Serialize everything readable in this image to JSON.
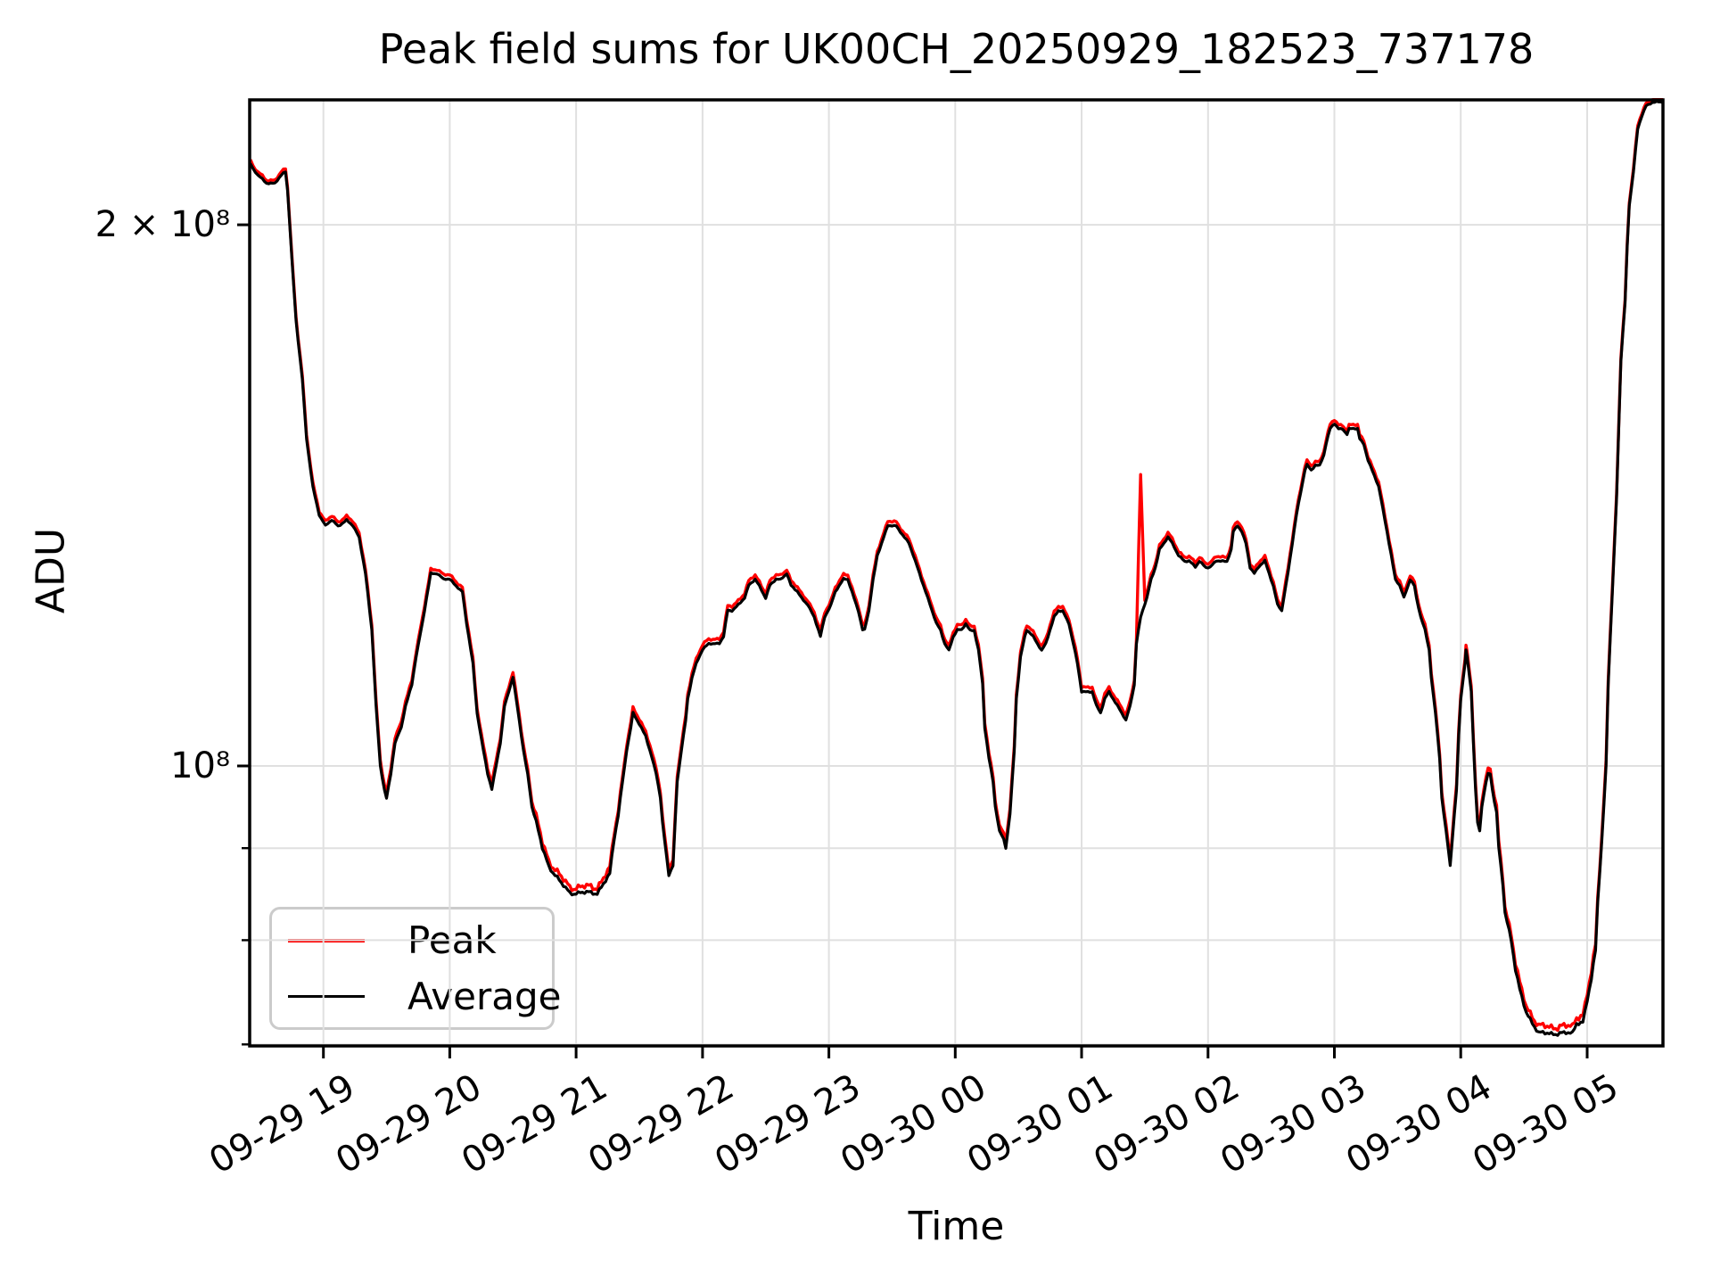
{
  "chart_data": {
    "type": "line",
    "title": "Peak field sums for UK00CH_20250929_182523_737178",
    "xlabel": "Time",
    "ylabel": "ADU",
    "yscale": "log",
    "grid": true,
    "legend_position": "lower left",
    "ylim": [
      70000000,
      235000000
    ],
    "x_unit": "minutes since 2025-09-29 18:25",
    "x_range_minutes": [
      0,
      671
    ],
    "x_ticks": [
      {
        "label": "09-29 19",
        "t": 35
      },
      {
        "label": "09-29 20",
        "t": 95
      },
      {
        "label": "09-29 21",
        "t": 155
      },
      {
        "label": "09-29 22",
        "t": 215
      },
      {
        "label": "09-29 23",
        "t": 275
      },
      {
        "label": "09-30 00",
        "t": 335
      },
      {
        "label": "09-30 01",
        "t": 395
      },
      {
        "label": "09-30 02",
        "t": 455
      },
      {
        "label": "09-30 03",
        "t": 515
      },
      {
        "label": "09-30 04",
        "t": 575
      },
      {
        "label": "09-30 05",
        "t": 635
      }
    ],
    "y_ticks": [
      {
        "label": "2 × 10⁸",
        "value_millions": 200
      },
      {
        "label": "10⁸",
        "value_millions": 100
      }
    ],
    "y_minor_ticks_millions": [
      90,
      80,
      70
    ],
    "x_minutes": [
      0.4,
      4,
      8,
      12,
      15,
      17,
      18,
      20,
      22,
      25,
      27,
      30,
      33,
      36,
      39,
      42,
      46,
      49,
      52,
      55,
      58,
      60,
      62,
      64,
      65,
      67,
      69,
      72,
      74,
      77,
      79,
      82,
      84,
      86,
      89,
      92,
      95,
      98,
      101,
      103,
      106,
      108,
      111,
      113,
      115,
      117,
      119,
      121,
      124,
      125,
      127,
      130,
      132,
      134,
      137,
      139,
      142,
      145,
      148,
      152,
      155,
      158,
      162,
      165,
      168,
      171,
      173,
      175,
      177,
      179,
      181,
      182,
      184,
      186,
      188,
      190,
      193,
      195,
      196,
      198,
      199,
      201,
      202,
      203,
      205,
      207,
      208,
      210,
      212,
      215,
      218,
      220,
      223,
      225,
      227,
      229,
      232,
      235,
      237,
      240,
      242,
      245,
      247,
      250,
      252,
      255,
      257,
      260,
      262,
      265,
      268,
      270,
      271,
      273,
      276,
      278,
      280,
      282,
      284,
      287,
      289,
      291,
      292,
      294,
      296,
      298,
      301,
      303,
      305,
      307,
      309,
      311,
      313,
      316,
      318,
      321,
      323,
      326,
      328,
      330,
      332,
      334,
      336,
      338,
      340,
      342,
      344,
      346,
      348,
      349,
      351,
      353,
      354,
      356,
      358,
      359,
      361,
      363,
      364,
      366,
      368,
      369,
      372,
      374,
      376,
      378,
      380,
      382,
      384,
      386,
      389,
      391,
      393,
      395,
      397,
      400,
      402,
      404,
      406,
      408,
      410,
      412,
      414,
      416,
      418,
      420,
      421,
      423,
      425,
      426,
      428,
      430,
      432,
      434,
      436,
      438,
      441,
      444,
      446,
      449,
      451,
      454,
      456,
      459,
      461,
      464,
      466,
      467,
      469,
      471,
      473,
      475,
      477,
      479,
      482,
      484,
      486,
      488,
      490,
      491,
      493,
      495,
      497,
      499,
      501,
      502,
      504,
      506,
      508,
      510,
      511,
      513,
      515,
      517,
      519,
      521,
      522,
      524,
      526,
      527,
      529,
      531,
      533,
      534,
      536,
      538,
      540,
      542,
      544,
      546,
      548,
      549,
      551,
      553,
      554,
      556,
      558,
      560,
      561,
      563,
      565,
      566,
      568,
      569,
      570,
      571,
      573,
      574,
      575,
      577,
      577.5,
      578,
      580,
      581,
      582,
      583,
      584,
      585,
      587,
      588,
      589,
      590,
      592,
      593,
      595,
      596,
      599,
      601,
      603,
      606,
      609,
      612,
      615,
      618,
      621,
      625,
      628,
      630,
      633,
      635,
      637,
      639,
      640,
      642,
      644,
      645,
      647,
      649,
      650,
      651,
      653,
      654,
      655,
      657,
      658,
      659,
      661,
      663,
      666,
      669,
      671
    ],
    "series": [
      {
        "name": "Peak",
        "color": "#ff0000",
        "values_millions": [
          216.5,
          213.5,
          211.5,
          211.5,
          213.5,
          214.5,
          209.5,
          192.5,
          177.5,
          164.5,
          152.5,
          143.5,
          138.5,
          136.5,
          137.5,
          136.5,
          137.5,
          136.5,
          134.5,
          128.5,
          119.5,
          108.5,
          100.5,
          97.5,
          96.5,
          99.5,
          103.5,
          105.5,
          108.5,
          111.5,
          115.5,
          120.5,
          124.5,
          128.5,
          128.5,
          127.5,
          127.5,
          126.5,
          125.5,
          120.5,
          114.5,
          107.5,
          102.5,
          99.5,
          97.5,
          100.5,
          103.5,
          108.5,
          111.5,
          112.5,
          108.5,
          102.5,
          99.5,
          95.5,
          92.5,
          90.5,
          88.5,
          87.5,
          86.5,
          85.5,
          85.5,
          85.5,
          85.5,
          85.5,
          86.5,
          87.5,
          91.5,
          94.5,
          98.5,
          102.5,
          105.5,
          107.5,
          106.5,
          105.5,
          104.5,
          102.5,
          99.5,
          96.5,
          93.5,
          89.5,
          87.5,
          88.5,
          93.5,
          98.5,
          102.5,
          106.5,
          109.5,
          112.5,
          114.5,
          116.5,
          117.5,
          117.5,
          117.5,
          118.5,
          122.5,
          122.5,
          123.5,
          124.5,
          126.5,
          127.5,
          126.5,
          124.5,
          126.5,
          127.5,
          127.5,
          128.5,
          126.5,
          125.5,
          124.5,
          123.5,
          121.5,
          119.5,
          118.5,
          121.5,
          123.5,
          125.5,
          126.5,
          127.5,
          127.5,
          124.5,
          122.5,
          119.5,
          119.5,
          122.5,
          127.5,
          131.5,
          134.5,
          136.5,
          136.5,
          136.5,
          135.5,
          134.5,
          133.5,
          130.5,
          128.5,
          125.5,
          123.5,
          120.5,
          119.5,
          117.5,
          116.5,
          118.5,
          119.5,
          119.5,
          120.5,
          119.5,
          119.5,
          116.5,
          111.5,
          105.5,
          101.5,
          98.5,
          95.5,
          92.5,
          91.5,
          90.5,
          94.5,
          102.5,
          109.5,
          115.5,
          118.5,
          119.5,
          118.5,
          117.5,
          116.5,
          117.5,
          119.5,
          121.5,
          122.5,
          122.5,
          120.5,
          117.5,
          114.5,
          110.5,
          110.5,
          110.5,
          108.5,
          107.5,
          109.5,
          110.5,
          109.5,
          108.5,
          107.5,
          106.5,
          108.5,
          111.5,
          117.5,
          145,
          123.5,
          124.5,
          127.5,
          129.5,
          132.5,
          133.5,
          134.5,
          133.5,
          131.5,
          130.5,
          130.5,
          129.5,
          130.5,
          129.5,
          129.5,
          130.5,
          130.5,
          130.5,
          132.5,
          135.5,
          136.5,
          135.5,
          133.5,
          129.5,
          128.5,
          129.5,
          130.5,
          128.5,
          126.5,
          123.5,
          122.5,
          124.5,
          128.5,
          133.5,
          138.5,
          142.5,
          146.5,
          147.5,
          146.5,
          147.5,
          147.5,
          149.5,
          151.5,
          154.5,
          155.5,
          154.5,
          154.5,
          153.5,
          154.5,
          154.5,
          154.5,
          152.5,
          151.5,
          148.5,
          146.5,
          145.5,
          143.5,
          139.5,
          135.5,
          131.5,
          127.5,
          126.5,
          124.5,
          125.5,
          127.5,
          126.5,
          124.5,
          121.5,
          119.5,
          116.5,
          112.5,
          107.5,
          101.5,
          96.5,
          92.5,
          90.5,
          88.5,
          91.5,
          97.5,
          104.5,
          109.5,
          114.5,
          116.5,
          115.5,
          110.5,
          103.5,
          97.5,
          93.5,
          92.5,
          95.5,
          98.5,
          99.5,
          99.5,
          97.5,
          94.5,
          90.5,
          86.5,
          83.5,
          80.5,
          77.5,
          75.5,
          73.5,
          72.5,
          71.5,
          71.5,
          71.5,
          71.5,
          71.5,
          71.5,
          72.5,
          72.5,
          74.5,
          76.5,
          79.5,
          84.5,
          91.5,
          100.5,
          111.5,
          125.5,
          141.5,
          154.5,
          168.5,
          181.5,
          194.5,
          205.5,
          214.5,
          220.5,
          226.5,
          230.5,
          233.5,
          234.5,
          234.5,
          234.5
        ]
      },
      {
        "name": "Average",
        "color": "#000000",
        "values_millions": [
          216,
          213,
          211,
          211,
          213,
          214,
          209,
          192,
          177,
          164,
          152,
          143,
          138,
          136,
          137,
          136,
          137,
          136,
          134,
          128,
          119,
          108,
          100,
          97,
          96,
          99,
          103,
          105,
          108,
          111,
          115,
          120,
          124,
          128,
          128,
          127,
          127,
          126,
          125,
          120,
          114,
          107,
          102,
          99,
          97,
          100,
          103,
          108,
          111,
          112,
          108,
          102,
          99,
          95,
          92,
          90,
          88,
          87,
          86,
          85,
          85,
          85,
          85,
          85,
          86,
          87,
          91,
          94,
          98,
          102,
          105,
          107,
          106,
          105,
          104,
          102,
          99,
          96,
          93,
          89,
          87,
          88,
          93,
          98,
          102,
          106,
          109,
          112,
          114,
          116,
          117,
          117,
          117,
          118,
          122,
          122,
          123,
          124,
          126,
          127,
          126,
          124,
          126,
          127,
          127,
          128,
          126,
          125,
          124,
          123,
          121,
          119,
          118,
          121,
          123,
          125,
          126,
          127,
          127,
          124,
          122,
          119,
          119,
          122,
          127,
          131,
          134,
          136,
          136,
          136,
          135,
          134,
          133,
          130,
          128,
          125,
          123,
          120,
          119,
          117,
          116,
          118,
          119,
          119,
          120,
          119,
          119,
          116,
          111,
          105,
          101,
          98,
          95,
          92,
          91,
          90,
          94,
          102,
          109,
          115,
          118,
          119,
          118,
          117,
          116,
          117,
          119,
          121,
          122,
          122,
          120,
          117,
          114,
          110,
          110,
          110,
          108,
          107,
          109,
          110,
          109,
          108,
          107,
          106,
          108,
          111,
          117,
          121,
          123,
          124,
          127,
          129,
          132,
          133,
          134,
          133,
          131,
          130,
          130,
          129,
          130,
          129,
          129,
          130,
          130,
          130,
          132,
          135,
          136,
          135,
          133,
          129,
          128,
          129,
          130,
          128,
          126,
          123,
          122,
          124,
          128,
          133,
          138,
          142,
          146,
          147,
          146,
          147,
          147,
          149,
          151,
          154,
          155,
          154,
          154,
          153,
          154,
          154,
          154,
          152,
          151,
          148,
          146,
          145,
          143,
          139,
          135,
          131,
          127,
          126,
          124,
          125,
          127,
          126,
          124,
          121,
          119,
          116,
          112,
          107,
          101,
          96,
          92,
          90,
          88,
          91,
          97,
          104,
          109,
          114,
          116,
          115,
          110,
          103,
          97,
          93,
          92,
          95,
          98,
          99,
          99,
          97,
          94,
          90,
          86,
          83,
          80,
          77,
          75,
          73,
          72,
          71,
          71,
          71,
          71,
          71,
          71,
          72,
          72,
          74,
          76,
          79,
          84,
          91,
          100,
          111,
          125,
          141,
          154,
          168,
          181,
          194,
          205,
          214,
          220,
          226,
          230,
          233,
          234,
          234,
          234
        ]
      }
    ]
  }
}
